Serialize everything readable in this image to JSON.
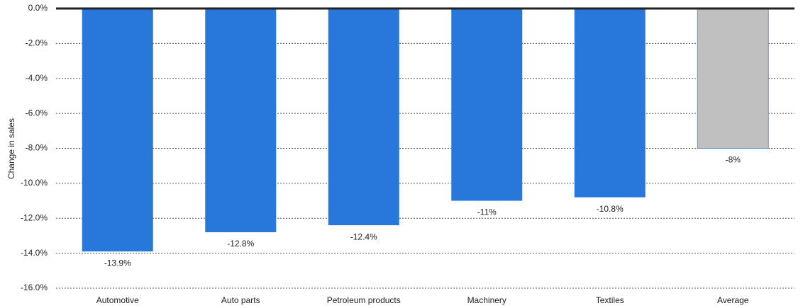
{
  "chart_data": {
    "type": "bar",
    "y_label": "Change in sales",
    "categories": [
      "Automotive",
      "Auto parts",
      "Petroleum products",
      "Machinery",
      "Textiles",
      "Average"
    ],
    "values": [
      -13.9,
      -12.8,
      -12.4,
      -11,
      -10.8,
      -8
    ],
    "value_labels": [
      "-13.9%",
      "-12.8%",
      "-12.4%",
      "-11%",
      "-10.8%",
      "-8%"
    ],
    "colors": [
      "#2878dc",
      "#2878dc",
      "#2878dc",
      "#2878dc",
      "#2878dc",
      "#c0c0c0"
    ],
    "ylim": [
      -16,
      0
    ],
    "yticks": [
      {
        "value": 0,
        "label": "0.0%"
      },
      {
        "value": -2,
        "label": "-2.0%"
      },
      {
        "value": -4,
        "label": "-4.0%"
      },
      {
        "value": -6,
        "label": "-6.0%"
      },
      {
        "value": -8,
        "label": "-8.0%"
      },
      {
        "value": -10,
        "label": "-10.0%"
      },
      {
        "value": -12,
        "label": "-12.0%"
      },
      {
        "value": -14,
        "label": "-14.0%"
      },
      {
        "value": -16,
        "label": "-16.0%"
      }
    ],
    "grid": true
  }
}
